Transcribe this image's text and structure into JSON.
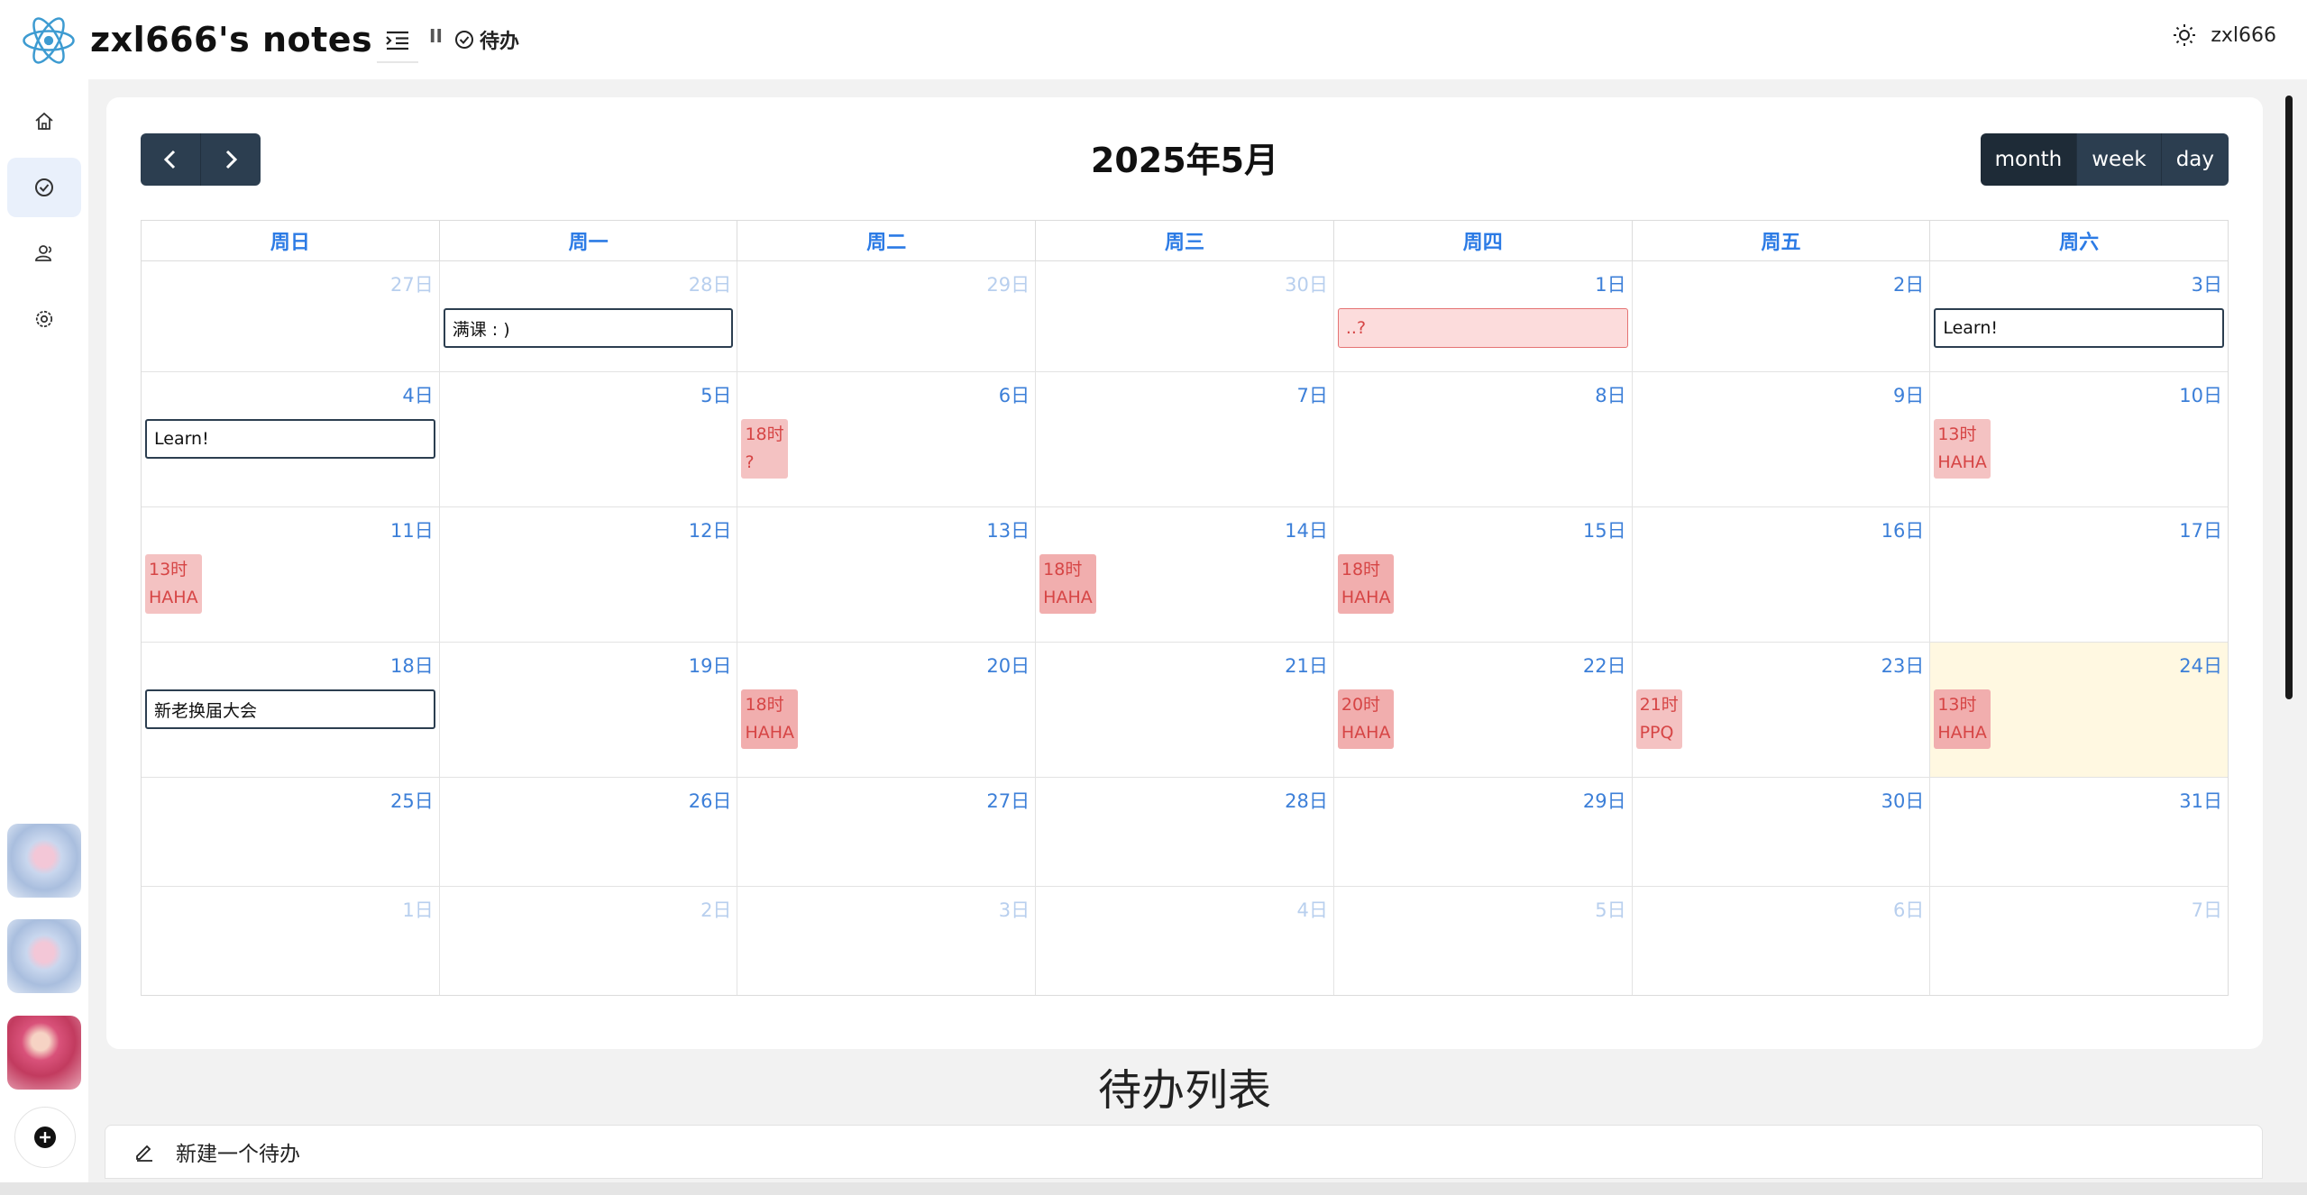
{
  "app": {
    "title": "zxl666's notes"
  },
  "header": {
    "breadcrumb_sep": "II",
    "page_label": "待办",
    "username": "zxl666"
  },
  "sidebar": {
    "items": [
      {
        "icon": "home-icon"
      },
      {
        "icon": "check-circle-icon",
        "active": true
      },
      {
        "icon": "users-icon"
      },
      {
        "icon": "settings-icon"
      }
    ]
  },
  "calendar": {
    "title": "2025年5月",
    "views": [
      "month",
      "week",
      "day"
    ],
    "active_view": "month",
    "weekdays": [
      "周日",
      "周一",
      "周二",
      "周三",
      "周四",
      "周五",
      "周六"
    ],
    "weeks": [
      {
        "days": [
          {
            "label": "27日",
            "other": true
          },
          {
            "label": "28日",
            "other": true,
            "allday": {
              "text": "满课 : )",
              "style": "outline"
            }
          },
          {
            "label": "29日",
            "other": true
          },
          {
            "label": "30日",
            "other": true
          },
          {
            "label": "1日",
            "allday": {
              "text": "..?",
              "style": "pink"
            }
          },
          {
            "label": "2日"
          },
          {
            "label": "3日",
            "allday": {
              "text": "Learn!",
              "style": "outline"
            }
          }
        ]
      },
      {
        "days": [
          {
            "label": "4日",
            "allday": {
              "text": "Learn!",
              "style": "outline"
            }
          },
          {
            "label": "5日"
          },
          {
            "label": "6日",
            "event": {
              "time": "18时",
              "text": "?"
            }
          },
          {
            "label": "7日"
          },
          {
            "label": "8日"
          },
          {
            "label": "9日"
          },
          {
            "label": "10日",
            "event": {
              "time": "13时",
              "text": "HAHA"
            }
          }
        ]
      },
      {
        "days": [
          {
            "label": "11日",
            "event": {
              "time": "13时",
              "text": "HAHA"
            }
          },
          {
            "label": "12日"
          },
          {
            "label": "13日"
          },
          {
            "label": "14日",
            "event": {
              "time": "18时",
              "text": "HAHA",
              "dark": true
            }
          },
          {
            "label": "15日",
            "event": {
              "time": "18时",
              "text": "HAHA",
              "dark": true
            }
          },
          {
            "label": "16日"
          },
          {
            "label": "17日"
          }
        ]
      },
      {
        "days": [
          {
            "label": "18日",
            "allday": {
              "text": "新老换届大会",
              "style": "outline"
            }
          },
          {
            "label": "19日"
          },
          {
            "label": "20日",
            "event": {
              "time": "18时",
              "text": "HAHA",
              "dark": true
            }
          },
          {
            "label": "21日"
          },
          {
            "label": "22日",
            "event": {
              "time": "20时",
              "text": "HAHA",
              "dark": true
            }
          },
          {
            "label": "23日",
            "event": {
              "time": "21时",
              "text": "PPQ"
            }
          },
          {
            "label": "24日",
            "today": true,
            "event": {
              "time": "13时",
              "text": "HAHA",
              "dark": true
            }
          }
        ]
      },
      {
        "days": [
          {
            "label": "25日"
          },
          {
            "label": "26日"
          },
          {
            "label": "27日"
          },
          {
            "label": "28日"
          },
          {
            "label": "29日"
          },
          {
            "label": "30日"
          },
          {
            "label": "31日"
          }
        ]
      },
      {
        "days": [
          {
            "label": "1日",
            "other": true
          },
          {
            "label": "2日",
            "other": true
          },
          {
            "label": "3日",
            "other": true
          },
          {
            "label": "4日",
            "other": true
          },
          {
            "label": "5日",
            "other": true
          },
          {
            "label": "6日",
            "other": true
          },
          {
            "label": "7日",
            "other": true
          }
        ]
      }
    ]
  },
  "todo": {
    "title": "待办列表",
    "new_placeholder": "新建一个待办"
  }
}
